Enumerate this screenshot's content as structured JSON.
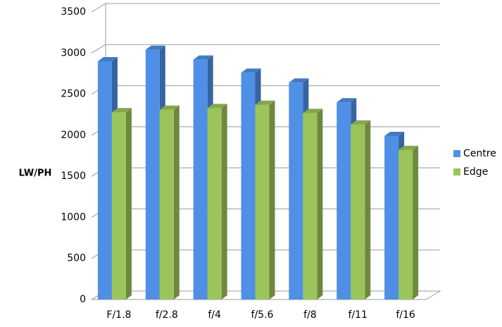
{
  "chart_data": {
    "type": "bar3d",
    "y_label": "LW/PH",
    "categories": [
      "F/1.8",
      "f/2.8",
      "f/4",
      "f/5.6",
      "f/8",
      "f/11",
      "f/16"
    ],
    "series": [
      {
        "name": "Centre",
        "color": "#4f8fe6",
        "values": [
          2900,
          3040,
          2920,
          2760,
          2640,
          2400,
          1990
        ]
      },
      {
        "name": "Edge",
        "color": "#9bc45a",
        "values": [
          2280,
          2310,
          2330,
          2370,
          2270,
          2130,
          1820
        ]
      }
    ],
    "ylim": [
      0,
      3500
    ],
    "yticks": [
      0,
      500,
      1000,
      1500,
      2000,
      2500,
      3000,
      3500
    ],
    "grid": true,
    "legend": "right"
  }
}
